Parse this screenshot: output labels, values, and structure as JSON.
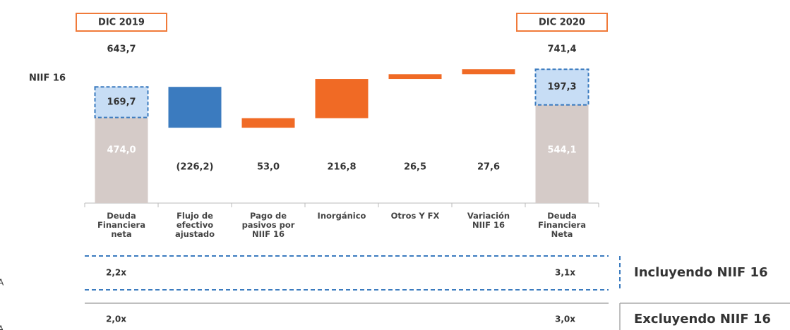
{
  "chart_data": {
    "type": "waterfall",
    "categories": [
      "Deuda\nFinanciera\nneta",
      "Flujo de\nefectivo\najustado",
      "Pago de\npasivos por\nNIIF 16",
      "Inorgánico",
      "Otros Y FX",
      "Variación\nNIIF 16",
      "Deuda\nFinanciera\nNeta"
    ],
    "values": [
      474.0,
      -226.2,
      53.0,
      216.8,
      26.5,
      27.6,
      544.1
    ],
    "value_labels": [
      "474,0",
      "(226,2)",
      "53,0",
      "216,8",
      "26,5",
      "27,6",
      "544,1"
    ],
    "niif_label": "NIIF 16",
    "niif_values": [
      169.7,
      null,
      null,
      null,
      null,
      null,
      197.3
    ],
    "niif_value_labels": [
      "169,7",
      null,
      null,
      null,
      null,
      null,
      "197,3"
    ],
    "totals": [
      643.7,
      null,
      null,
      null,
      null,
      null,
      741.4
    ],
    "total_labels": [
      "643,7",
      null,
      null,
      null,
      null,
      null,
      "741,4"
    ],
    "period_labels": [
      "DIC 2019",
      null,
      null,
      null,
      null,
      null,
      "DIC 2020"
    ],
    "colors": {
      "total": "#d5cbc8",
      "niif": "#c7ddf5",
      "increase": "#f06a25",
      "decrease": "#3b7bbf",
      "box": "#f07a3a"
    },
    "ratios": [
      {
        "name": "Incluyendo NIIF 16",
        "start": "2,2x",
        "end": "3,1x",
        "cut_label": "A"
      },
      {
        "name": "Excluyendo NIIF 16",
        "start": "2,0x",
        "end": "3,0x",
        "cut_label": "A"
      }
    ]
  }
}
